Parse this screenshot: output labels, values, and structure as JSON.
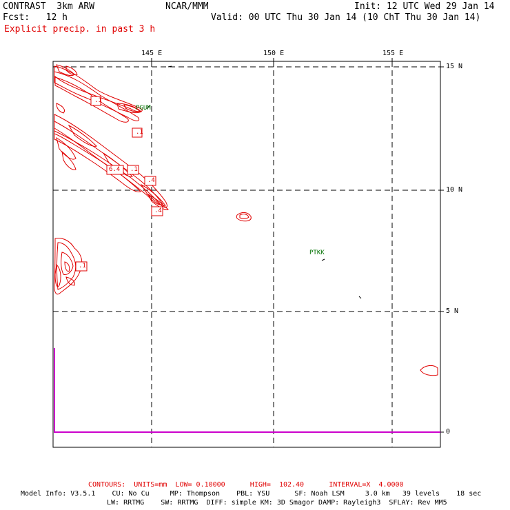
{
  "header": {
    "left_line1": "CONTRAST  3km ARW",
    "left_line2": "Fcst:   12 h",
    "center_line1": "NCAR/MMM",
    "right_line1": "Init: 12 UTC Wed 29 Jan 14",
    "right_line2": "Valid: 00 UTC Thu 30 Jan 14 (10 ChT Thu 30 Jan 14)",
    "field_title": "Explicit precip. in past 3 h"
  },
  "map": {
    "lon_labels": [
      "145 E",
      "150 E",
      "155 E"
    ],
    "lat_labels": [
      "15 N",
      "10 N",
      "5 N"
    ],
    "side_scale_label": "0",
    "stations": [
      "PGUM",
      "PTKK"
    ],
    "contour_labels": [
      ".1",
      ".1",
      "6.4",
      ".1",
      ".4",
      ".4",
      ".1"
    ]
  },
  "footer": {
    "contours_line": "CONTOURS:  UNITS=mm  LOW= 0.10000      HIGH=  102.40      INTERVAL=X  4.0000",
    "model_info_1": "Model Info: V3.5.1    CU: No Cu     MP: Thompson    PBL: YSU      SF: Noah LSM     3.0 km   39 levels    18 sec",
    "model_info_2": "LW: RRTMG    SW: RRTMG  DIFF: simple KM: 3D Smagor DAMP: Rayleigh3  SFLAY: Rev MM5"
  },
  "colors": {
    "contour": "#e00000",
    "station": "#007000",
    "trace": "#cc00cc",
    "grid": "#000000"
  }
}
